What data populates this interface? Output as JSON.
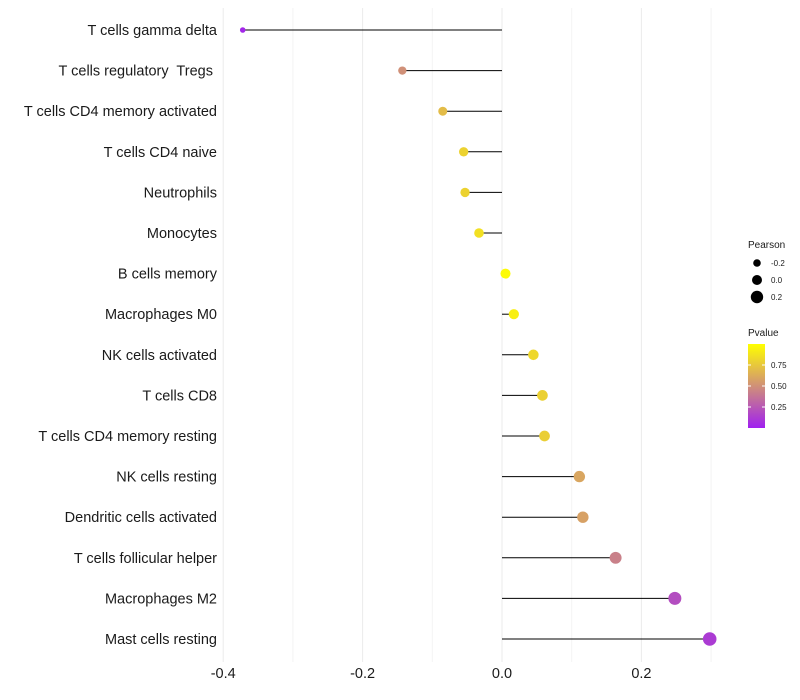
{
  "chart_data": {
    "type": "lollipop",
    "x_ticks": [
      "-0.4",
      "-0.2",
      "0.0",
      "0.2"
    ],
    "x_tick_values": [
      -0.4,
      -0.2,
      0.0,
      0.2
    ],
    "xlim": [
      -0.44,
      0.33
    ],
    "points": [
      {
        "label": "T cells gamma delta",
        "pearson": -0.372,
        "pvalue": 0.03
      },
      {
        "label": "T cells regulatory  Tregs ",
        "pearson": -0.143,
        "pvalue": 0.5
      },
      {
        "label": "T cells CD4 memory activated",
        "pearson": -0.085,
        "pvalue": 0.7
      },
      {
        "label": "T cells CD4 naive",
        "pearson": -0.055,
        "pvalue": 0.8
      },
      {
        "label": "Neutrophils",
        "pearson": -0.053,
        "pvalue": 0.8
      },
      {
        "label": "Monocytes",
        "pearson": -0.033,
        "pvalue": 0.86
      },
      {
        "label": "B cells memory",
        "pearson": 0.005,
        "pvalue": 0.98
      },
      {
        "label": "Macrophages M0",
        "pearson": 0.017,
        "pvalue": 0.93
      },
      {
        "label": "NK cells activated",
        "pearson": 0.045,
        "pvalue": 0.82
      },
      {
        "label": "T cells CD8",
        "pearson": 0.058,
        "pvalue": 0.79
      },
      {
        "label": "T cells CD4 memory resting",
        "pearson": 0.061,
        "pvalue": 0.78
      },
      {
        "label": "NK cells resting",
        "pearson": 0.111,
        "pvalue": 0.6
      },
      {
        "label": "Dendritic cells activated",
        "pearson": 0.116,
        "pvalue": 0.58
      },
      {
        "label": "T cells follicular helper",
        "pearson": 0.163,
        "pvalue": 0.43
      },
      {
        "label": "Macrophages M2",
        "pearson": 0.248,
        "pvalue": 0.2
      },
      {
        "label": "Mast cells resting",
        "pearson": 0.298,
        "pvalue": 0.12
      }
    ],
    "size_legend": {
      "title": "Pearson",
      "entries": [
        {
          "label": "-0.2",
          "value": -0.2
        },
        {
          "label": "0.0",
          "value": 0.0
        },
        {
          "label": "0.2",
          "value": 0.2
        }
      ]
    },
    "color_legend": {
      "title": "Pvalue",
      "labels": [
        "0.75",
        "0.50",
        "0.25"
      ],
      "values": [
        0.75,
        0.5,
        0.25
      ],
      "range": [
        0.0,
        1.0
      ],
      "low_color": "#a020f0",
      "high_color": "#ffff00"
    }
  }
}
